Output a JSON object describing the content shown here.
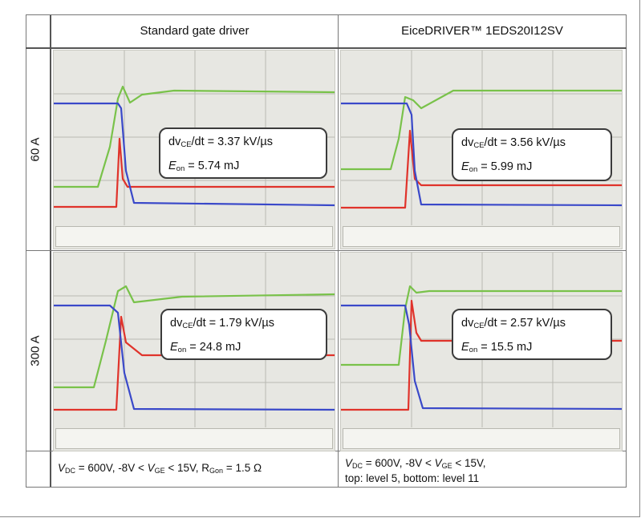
{
  "headers": {
    "col1": "Standard gate driver",
    "col2": "EiceDRIVER™ 1EDS20I12SV"
  },
  "rows": {
    "row1_label": "60 A",
    "row2_label": "300 A"
  },
  "panels": [
    {
      "dv_prefix": "dv",
      "dv_sub": "CE",
      "dv_suffix": "/dt = 3.37 kV/µs",
      "e_prefix": "E",
      "e_sub": "on",
      "e_suffix": " = 5.74 mJ"
    },
    {
      "dv_prefix": "dv",
      "dv_sub": "CE",
      "dv_suffix": "/dt = 3.56 kV/µs",
      "e_prefix": "E",
      "e_sub": "on",
      "e_suffix": " = 5.99 mJ"
    },
    {
      "dv_prefix": "dv",
      "dv_sub": "CE",
      "dv_suffix": "/dt = 1.79 kV/µs",
      "e_prefix": "E",
      "e_sub": "on",
      "e_suffix": " = 24.8 mJ"
    },
    {
      "dv_prefix": "dv",
      "dv_sub": "CE",
      "dv_suffix": "/dt = 2.57 kV/µs",
      "e_prefix": "E",
      "e_sub": "on",
      "e_suffix": " = 15.5 mJ"
    }
  ],
  "footer": {
    "left": {
      "v": "V",
      "v_sub": "DC",
      "t1": " = 600V, -8V < ",
      "vge": "V",
      "vge_sub": "GE",
      "t2": " < 15V, R",
      "r_sub": "Gon",
      "t3": " = 1.5 Ω"
    },
    "right": {
      "v": "V",
      "v_sub": "DC",
      "t1": " = 600V, -8V < ",
      "vge": "V",
      "vge_sub": "GE",
      "t2": " < 15V,",
      "line2": "top: level 5, bottom: level 11"
    }
  },
  "colors": {
    "vce_trace": "#3a49c9",
    "ic_trace": "#e0332b",
    "vge_trace": "#79c24a",
    "scope_bg": "#e7e7e2",
    "grid": "#b9b9b2"
  }
}
